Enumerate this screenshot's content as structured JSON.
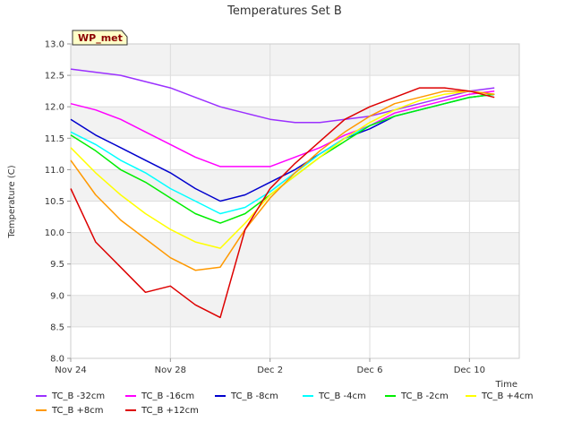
{
  "chart_data": {
    "type": "line",
    "title": "Temperatures Set B",
    "xlabel": "Time",
    "ylabel": "Temperature (C)",
    "xlim": [
      "2024-11-24",
      "2024-12-12"
    ],
    "ylim": [
      8.0,
      13.0
    ],
    "x_ticks": [
      "Nov 24",
      "Nov 28",
      "Dec 2",
      "Dec 6",
      "Dec 10"
    ],
    "y_ticks": [
      "8.0",
      "8.5",
      "9.0",
      "9.5",
      "10.0",
      "10.5",
      "11.0",
      "11.5",
      "12.0",
      "12.5",
      "13.0"
    ],
    "station_label": "WP_met",
    "grid": true,
    "legend_position": "bottom",
    "x": [
      "Nov 24",
      "Nov 25",
      "Nov 26",
      "Nov 27",
      "Nov 28",
      "Nov 29",
      "Nov 30",
      "Dec 1",
      "Dec 2",
      "Dec 3",
      "Dec 4",
      "Dec 5",
      "Dec 6",
      "Dec 7",
      "Dec 8",
      "Dec 9",
      "Dec 10",
      "Dec 11"
    ],
    "series": [
      {
        "name": "TC_B -32cm",
        "color": "#9b30ff",
        "values": [
          12.6,
          12.55,
          12.5,
          12.4,
          12.3,
          12.15,
          12.0,
          11.9,
          11.8,
          11.75,
          11.75,
          11.8,
          11.85,
          11.95,
          12.05,
          12.15,
          12.25,
          12.3
        ]
      },
      {
        "name": "TC_B -16cm",
        "color": "#ff00ff",
        "values": [
          12.05,
          11.95,
          11.8,
          11.6,
          11.4,
          11.2,
          11.05,
          11.05,
          11.05,
          11.2,
          11.35,
          11.55,
          11.7,
          11.9,
          12.0,
          12.1,
          12.2,
          12.25
        ]
      },
      {
        "name": "TC_B -8cm",
        "color": "#0000cd",
        "values": [
          11.8,
          11.55,
          11.35,
          11.15,
          10.95,
          10.7,
          10.5,
          10.6,
          10.8,
          11.0,
          11.25,
          11.5,
          11.65,
          11.85,
          11.95,
          12.05,
          12.15,
          12.2
        ]
      },
      {
        "name": "TC_B -4cm",
        "color": "#00ffff",
        "values": [
          11.6,
          11.4,
          11.15,
          10.95,
          10.7,
          10.5,
          10.3,
          10.4,
          10.65,
          10.95,
          11.25,
          11.5,
          11.7,
          11.85,
          11.95,
          12.05,
          12.15,
          12.2
        ]
      },
      {
        "name": "TC_B -2cm",
        "color": "#00ee00",
        "values": [
          11.55,
          11.3,
          11.0,
          10.8,
          10.55,
          10.3,
          10.15,
          10.3,
          10.6,
          10.9,
          11.2,
          11.45,
          11.7,
          11.85,
          11.95,
          12.05,
          12.15,
          12.2
        ]
      },
      {
        "name": "TC_B +4cm",
        "color": "#ffff00",
        "values": [
          11.35,
          10.95,
          10.6,
          10.3,
          10.05,
          9.85,
          9.75,
          10.15,
          10.6,
          10.9,
          11.2,
          11.5,
          11.75,
          11.95,
          12.1,
          12.2,
          12.25,
          12.2
        ]
      },
      {
        "name": "TC_B +8cm",
        "color": "#ff9900",
        "values": [
          11.15,
          10.6,
          10.2,
          9.9,
          9.6,
          9.4,
          9.45,
          10.05,
          10.55,
          10.95,
          11.3,
          11.6,
          11.85,
          12.05,
          12.15,
          12.25,
          12.25,
          12.2
        ]
      },
      {
        "name": "TC_B +12cm",
        "color": "#dd0000",
        "values": [
          10.7,
          9.85,
          9.45,
          9.05,
          9.15,
          8.85,
          8.65,
          10.05,
          10.7,
          11.1,
          11.45,
          11.8,
          12.0,
          12.15,
          12.3,
          12.3,
          12.25,
          12.15
        ]
      }
    ]
  }
}
